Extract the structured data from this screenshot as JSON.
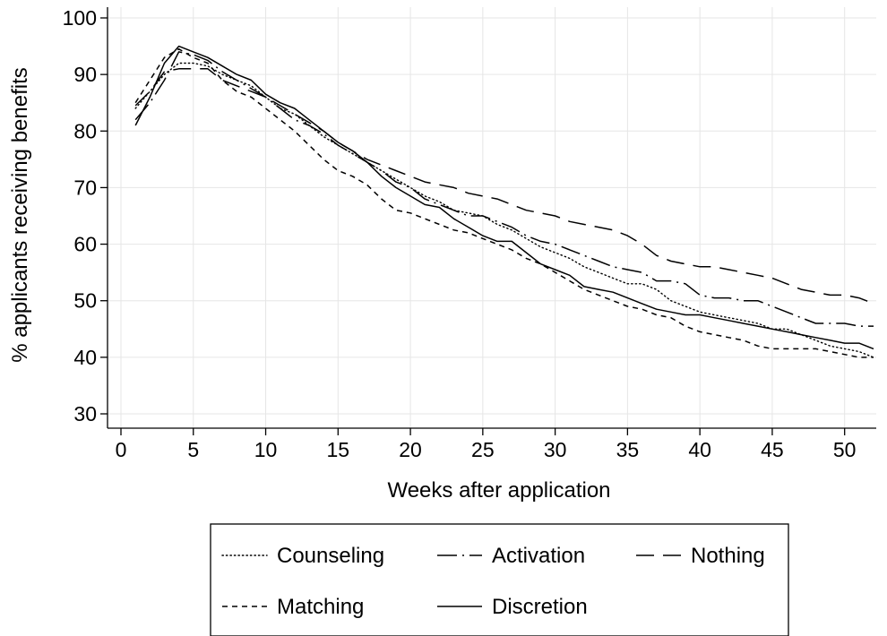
{
  "chart_data": {
    "type": "line",
    "title": "",
    "xlabel": "Weeks after application",
    "ylabel": "% applicants receiving benefits",
    "xlim": [
      0,
      52
    ],
    "ylim": [
      30,
      100
    ],
    "xticks": [
      0,
      5,
      10,
      15,
      20,
      25,
      30,
      35,
      40,
      45,
      50
    ],
    "yticks": [
      30,
      40,
      50,
      60,
      70,
      80,
      90,
      100
    ],
    "grid": true,
    "legend_position": "bottom",
    "series": [
      {
        "name": "Counseling",
        "style": "dotted",
        "x": [
          1,
          2,
          3,
          4,
          5,
          6,
          7,
          8,
          9,
          10,
          11,
          12,
          13,
          14,
          15,
          16,
          17,
          18,
          19,
          20,
          21,
          22,
          23,
          24,
          25,
          26,
          27,
          28,
          29,
          30,
          31,
          32,
          33,
          34,
          35,
          36,
          37,
          38,
          39,
          40,
          41,
          42,
          43,
          44,
          45,
          46,
          47,
          48,
          49,
          50,
          51,
          52
        ],
        "y": [
          84,
          87,
          90,
          92,
          92,
          91.5,
          90,
          89,
          88,
          86,
          84,
          83,
          81,
          79,
          77.5,
          76,
          74.5,
          73,
          71.5,
          70,
          68.5,
          67.5,
          66,
          65.5,
          65,
          63.5,
          62.5,
          61,
          59.5,
          58.5,
          57.5,
          56,
          55,
          54,
          53,
          53,
          52,
          50,
          49,
          48,
          47.5,
          47,
          46.5,
          46,
          45,
          45,
          44,
          43,
          42,
          41.5,
          41,
          40
        ]
      },
      {
        "name": "Activation",
        "style": "longdash-dot",
        "x": [
          1,
          2,
          3,
          4,
          5,
          6,
          7,
          8,
          9,
          10,
          11,
          12,
          13,
          14,
          15,
          16,
          17,
          18,
          19,
          20,
          21,
          22,
          23,
          24,
          25,
          26,
          27,
          28,
          29,
          30,
          31,
          32,
          33,
          34,
          35,
          36,
          37,
          38,
          39,
          40,
          41,
          42,
          43,
          44,
          45,
          46,
          47,
          48,
          49,
          50,
          51,
          52
        ],
        "y": [
          82,
          85,
          89,
          94,
          93.5,
          92.5,
          90.5,
          89,
          87.5,
          86,
          84,
          82,
          81,
          79.5,
          77.5,
          76,
          74.5,
          73,
          71,
          70,
          68,
          67,
          66,
          65,
          65,
          64,
          63,
          61.5,
          60.5,
          60,
          59,
          58,
          57,
          56,
          55.5,
          55,
          53.5,
          53.5,
          53,
          51,
          50.5,
          50.5,
          50,
          50,
          49,
          48,
          47,
          46,
          46,
          46,
          45.5,
          45.5
        ]
      },
      {
        "name": "Nothing",
        "style": "longdash",
        "x": [
          1,
          2,
          3,
          4,
          5,
          6,
          7,
          8,
          9,
          10,
          11,
          12,
          13,
          14,
          15,
          16,
          17,
          18,
          19,
          20,
          21,
          22,
          23,
          24,
          25,
          26,
          27,
          28,
          29,
          30,
          31,
          32,
          33,
          34,
          35,
          36,
          37,
          38,
          39,
          40,
          41,
          42,
          43,
          44,
          45,
          46,
          47,
          48,
          49,
          50,
          51,
          52
        ],
        "y": [
          84.5,
          87,
          90.5,
          91,
          91,
          91,
          89,
          88,
          87,
          86,
          84.5,
          83,
          81.5,
          80,
          78,
          76.5,
          75,
          74,
          73,
          72,
          71,
          70.5,
          70,
          69,
          68.5,
          68,
          67,
          66,
          65.5,
          65,
          64,
          63.5,
          63,
          62.5,
          61.5,
          60,
          58,
          57,
          56.5,
          56,
          56,
          55.5,
          55,
          54.5,
          54,
          53,
          52,
          51.5,
          51,
          51,
          50.5,
          49.5
        ]
      },
      {
        "name": "Matching",
        "style": "shortdash",
        "x": [
          1,
          2,
          3,
          4,
          5,
          6,
          7,
          8,
          9,
          10,
          11,
          12,
          13,
          14,
          15,
          16,
          17,
          18,
          19,
          20,
          21,
          22,
          23,
          24,
          25,
          26,
          27,
          28,
          29,
          30,
          31,
          32,
          33,
          34,
          35,
          36,
          37,
          38,
          39,
          40,
          41,
          42,
          43,
          44,
          45,
          46,
          47,
          48,
          49,
          50,
          51,
          52
        ],
        "y": [
          85,
          89,
          93,
          94.5,
          93,
          92,
          89,
          87,
          86,
          84,
          82,
          80,
          77.5,
          75,
          73,
          72,
          70.5,
          68,
          66,
          65.5,
          64.5,
          63.5,
          62.5,
          62,
          61,
          60,
          59,
          57.5,
          56.5,
          55,
          53.5,
          52,
          51,
          50,
          49,
          48.5,
          47.5,
          47,
          45.5,
          44.5,
          44,
          43.5,
          43,
          42,
          41.5,
          41.5,
          41.5,
          41.5,
          41,
          40.5,
          40,
          40
        ]
      },
      {
        "name": "Discretion",
        "style": "solid",
        "x": [
          1,
          2,
          3,
          4,
          5,
          6,
          7,
          8,
          9,
          10,
          11,
          12,
          13,
          14,
          15,
          16,
          17,
          18,
          19,
          20,
          21,
          22,
          23,
          24,
          25,
          26,
          27,
          28,
          29,
          30,
          31,
          32,
          33,
          34,
          35,
          36,
          37,
          38,
          39,
          40,
          41,
          42,
          43,
          44,
          45,
          46,
          47,
          48,
          49,
          50,
          51,
          52
        ],
        "y": [
          81,
          86,
          92,
          95,
          94,
          93,
          91.5,
          90,
          89,
          86.5,
          85,
          84,
          82,
          80,
          78,
          76.5,
          74.5,
          72,
          70,
          68.5,
          67,
          66.5,
          64.5,
          63,
          61.5,
          60.5,
          60.5,
          58.5,
          56.5,
          55.5,
          54.5,
          52.5,
          52,
          51.5,
          50.5,
          49.5,
          48.5,
          48,
          47.5,
          47.5,
          47,
          46.5,
          46,
          45.5,
          45,
          44.5,
          44,
          43.5,
          43,
          42.5,
          42.5,
          41.5
        ]
      }
    ]
  },
  "legend": {
    "items": [
      {
        "name": "Counseling",
        "style": "dotted"
      },
      {
        "name": "Activation",
        "style": "longdash-dot"
      },
      {
        "name": "Nothing",
        "style": "longdash"
      },
      {
        "name": "Matching",
        "style": "shortdash"
      },
      {
        "name": "Discretion",
        "style": "solid"
      }
    ]
  }
}
